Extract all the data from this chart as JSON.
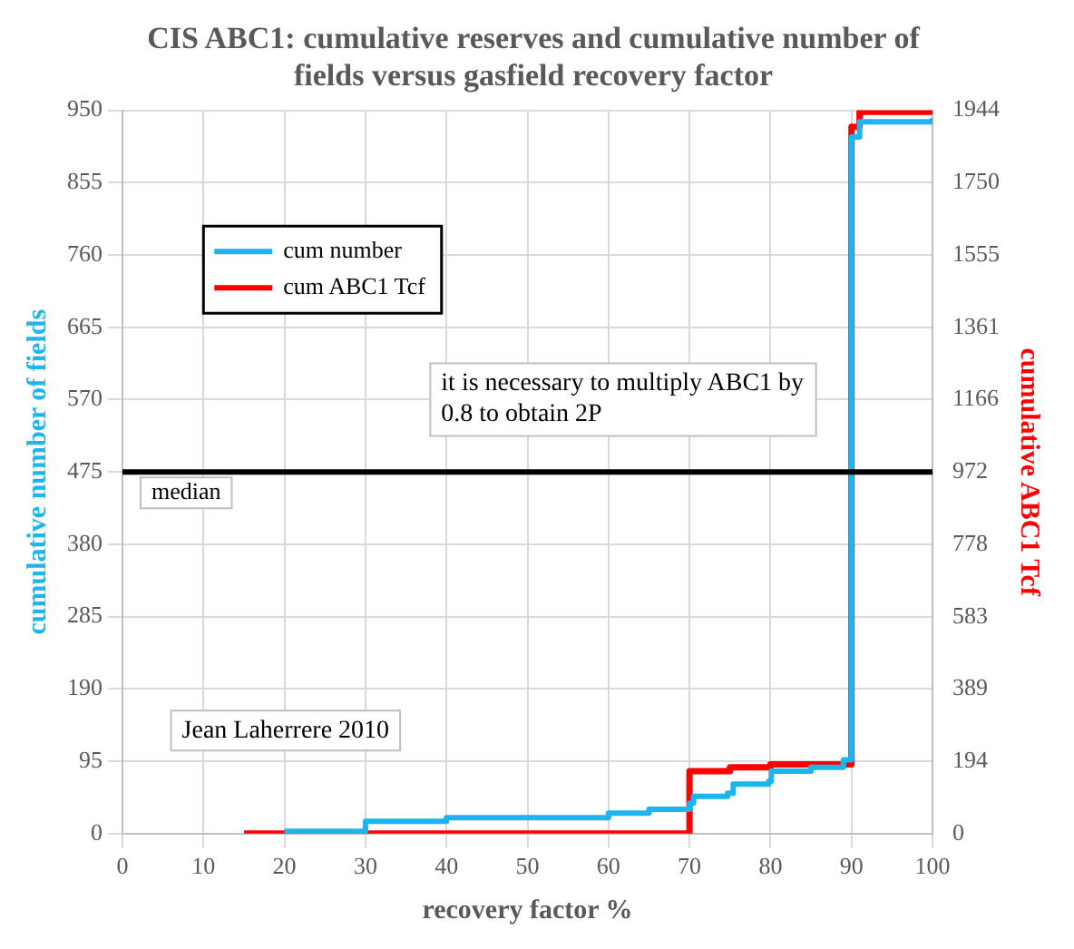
{
  "chart_data": {
    "type": "step",
    "title": "CIS ABC1: cumulative reserves and cumulative number of fields versus gasfield recovery factor",
    "xlabel": "recovery factor %",
    "ylabel": "cumulative number of fields",
    "y2label": "cumulative ABC1 Tcf",
    "xlim": [
      0,
      100
    ],
    "xticks": [
      0,
      10,
      20,
      30,
      40,
      50,
      60,
      70,
      80,
      90,
      100
    ],
    "ylim": [
      0,
      950
    ],
    "yticks": [
      0,
      95,
      190,
      285,
      380,
      475,
      570,
      665,
      760,
      855,
      950
    ],
    "y2lim": [
      0,
      1944
    ],
    "y2ticks": [
      0,
      194,
      389,
      583,
      778,
      972,
      1166,
      1361,
      1555,
      1750,
      1944
    ],
    "series": [
      {
        "name": "cum number",
        "color": "#1eb4ee",
        "x": [
          20,
          30,
          40,
          60,
          65,
          70,
          70.5,
          74.7,
          75.4,
          79.8,
          80.1,
          85,
          89,
          90,
          91,
          100
        ],
        "values": [
          3,
          16,
          21,
          27,
          32,
          40,
          49,
          53,
          65,
          69,
          82,
          87,
          97,
          915,
          935,
          940
        ]
      },
      {
        "name": "cum ABC1 Tcf",
        "color": "#ff0000",
        "axis": "y2",
        "x": [
          15,
          70,
          75,
          80,
          90,
          91,
          100
        ],
        "values": [
          0,
          168,
          178,
          186,
          1900,
          1940,
          1940
        ]
      }
    ],
    "ref_lines": [
      {
        "axis": "y",
        "value": 475,
        "label": "median",
        "color": "#000000"
      }
    ],
    "annotations": [
      "it is necessary to multiply ABC1 by 0.8 to obtain 2P",
      "Jean Laherrere 2010"
    ],
    "grid": true,
    "legend": "top left",
    "marker": "none",
    "line_style": "solid"
  }
}
